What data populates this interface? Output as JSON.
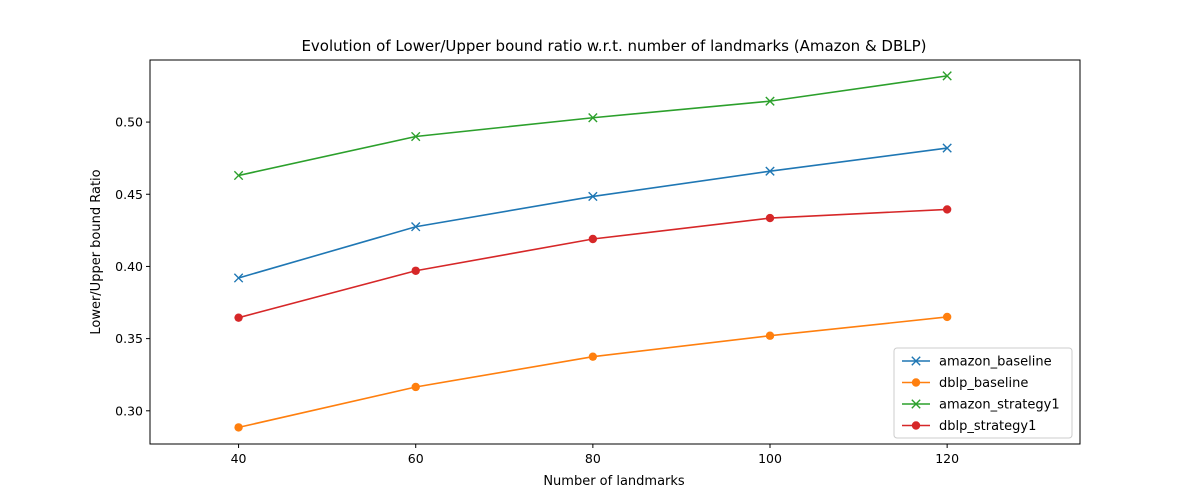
{
  "chart_data": {
    "type": "line",
    "title": "Evolution of Lower/Upper bound ratio w.r.t. number of landmarks (Amazon & DBLP)",
    "xlabel": "Number of landmarks",
    "ylabel": "Lower/Upper bound Ratio",
    "x": [
      40,
      60,
      80,
      100,
      120
    ],
    "xlim": [
      30,
      135
    ],
    "ylim": [
      0.277,
      0.543
    ],
    "xticks": [
      "40",
      "60",
      "80",
      "100",
      "120"
    ],
    "yticks": [
      "0.30",
      "0.35",
      "0.40",
      "0.45",
      "0.50"
    ],
    "grid": false,
    "legend_position": "lower-right",
    "series": [
      {
        "name": "amazon_baseline",
        "color": "#1f77b4",
        "marker": "x",
        "values": [
          0.392,
          0.4275,
          0.4485,
          0.466,
          0.482
        ]
      },
      {
        "name": "dblp_baseline",
        "color": "#ff7f0e",
        "marker": "o",
        "values": [
          0.2885,
          0.3165,
          0.3375,
          0.352,
          0.365
        ]
      },
      {
        "name": "amazon_strategy1",
        "color": "#2ca02c",
        "marker": "x",
        "values": [
          0.463,
          0.49,
          0.503,
          0.5145,
          0.532
        ]
      },
      {
        "name": "dblp_strategy1",
        "color": "#d62728",
        "marker": "o",
        "values": [
          0.3645,
          0.397,
          0.419,
          0.4335,
          0.4395
        ]
      }
    ]
  }
}
